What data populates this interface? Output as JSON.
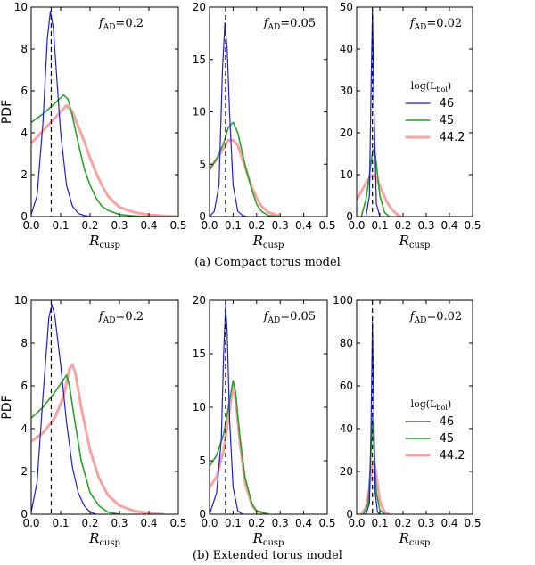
{
  "captions": {
    "a": "(a)  Compact torus model",
    "b": "(b)  Extended torus model"
  },
  "y_axis_label": "PDF",
  "x_axis_label": {
    "main": "R",
    "sub": "cusp"
  },
  "legend": {
    "title_main": "log(L",
    "title_sub": "bol",
    "title_close": ")",
    "entries": [
      {
        "label": "46",
        "color": "#1f1fd6",
        "width": 1.2
      },
      {
        "label": "45",
        "color": "#2ca02c",
        "width": 1.6
      },
      {
        "label": "44.2",
        "color": "#f5a3a3",
        "width": 3.0
      }
    ]
  },
  "x_ticks": [
    "0.0",
    "0.1",
    "0.2",
    "0.3",
    "0.4",
    "0.5"
  ],
  "chart_data": [
    {
      "type": "line",
      "row": "a",
      "panel": 1,
      "annotation": {
        "main": "f",
        "sub": "AD",
        "value": "=0.2"
      },
      "xlim": [
        0,
        0.5
      ],
      "ylim": [
        0,
        10
      ],
      "yticks": [
        0,
        2,
        4,
        6,
        8,
        10
      ],
      "vline_x": 0.068,
      "series": [
        {
          "name": "46",
          "x": [
            0,
            0.02,
            0.04,
            0.055,
            0.065,
            0.075,
            0.09,
            0.1,
            0.12,
            0.14,
            0.16,
            0.18,
            0.2
          ],
          "y": [
            0.1,
            1,
            4.5,
            8.5,
            9.8,
            9,
            6,
            4,
            1.5,
            0.5,
            0.15,
            0.05,
            0
          ]
        },
        {
          "name": "45",
          "x": [
            0,
            0.04,
            0.08,
            0.11,
            0.125,
            0.14,
            0.16,
            0.18,
            0.2,
            0.22,
            0.24,
            0.26,
            0.3,
            0.35,
            0.4
          ],
          "y": [
            4.5,
            4.9,
            5.4,
            5.8,
            5.6,
            4.8,
            3.5,
            2.3,
            1.5,
            0.9,
            0.5,
            0.3,
            0.1,
            0.03,
            0
          ]
        },
        {
          "name": "44.2",
          "x": [
            0,
            0.04,
            0.08,
            0.12,
            0.14,
            0.16,
            0.18,
            0.2,
            0.22,
            0.24,
            0.26,
            0.28,
            0.3,
            0.35,
            0.4,
            0.45,
            0.5
          ],
          "y": [
            3.5,
            4.1,
            4.7,
            5.3,
            5,
            4.3,
            3.6,
            2.8,
            2.1,
            1.5,
            1,
            0.7,
            0.45,
            0.2,
            0.08,
            0.03,
            0
          ]
        }
      ]
    },
    {
      "type": "line",
      "row": "a",
      "panel": 2,
      "annotation": {
        "main": "f",
        "sub": "AD",
        "value": "=0.05"
      },
      "xlim": [
        0,
        0.5
      ],
      "ylim": [
        0,
        20
      ],
      "yticks": [
        0,
        5,
        10,
        15,
        20
      ],
      "vline_x": 0.068,
      "series": [
        {
          "name": "46",
          "x": [
            0,
            0.02,
            0.04,
            0.055,
            0.065,
            0.075,
            0.085,
            0.1,
            0.12,
            0.14,
            0.16
          ],
          "y": [
            0,
            0.5,
            3,
            14,
            18.5,
            16,
            10,
            3,
            0.5,
            0.1,
            0
          ]
        },
        {
          "name": "45",
          "x": [
            0,
            0.03,
            0.06,
            0.08,
            0.1,
            0.12,
            0.15,
            0.18,
            0.2,
            0.22,
            0.25,
            0.3
          ],
          "y": [
            4.5,
            5.5,
            7,
            8.5,
            9,
            8,
            5,
            2.5,
            1.2,
            0.5,
            0.1,
            0
          ]
        },
        {
          "name": "44.2",
          "x": [
            0,
            0.03,
            0.06,
            0.08,
            0.1,
            0.12,
            0.15,
            0.18,
            0.2,
            0.22,
            0.25,
            0.3
          ],
          "y": [
            4.5,
            5.5,
            6.5,
            7.3,
            7.3,
            6.8,
            4.8,
            2.8,
            1.8,
            1,
            0.4,
            0.05
          ]
        }
      ]
    },
    {
      "type": "line",
      "row": "a",
      "panel": 3,
      "annotation": {
        "main": "f",
        "sub": "AD",
        "value": "=0.02"
      },
      "xlim": [
        0,
        0.5
      ],
      "ylim": [
        0,
        50
      ],
      "yticks": [
        0,
        10,
        20,
        30,
        40,
        50
      ],
      "vline_x": 0.068,
      "series": [
        {
          "name": "46",
          "x": [
            0.04,
            0.055,
            0.062,
            0.068,
            0.075,
            0.085,
            0.1
          ],
          "y": [
            0,
            5,
            30,
            49,
            25,
            3,
            0
          ]
        },
        {
          "name": "45",
          "x": [
            0.02,
            0.04,
            0.055,
            0.07,
            0.08,
            0.09,
            0.1,
            0.12,
            0.14
          ],
          "y": [
            0,
            4,
            10,
            16,
            15,
            10,
            5,
            1,
            0
          ]
        },
        {
          "name": "44.2",
          "x": [
            0,
            0.02,
            0.04,
            0.06,
            0.075,
            0.09,
            0.11,
            0.13,
            0.15,
            0.17,
            0.19
          ],
          "y": [
            4,
            6,
            8,
            9.5,
            10,
            8.5,
            6,
            3.5,
            1.8,
            0.7,
            0
          ]
        }
      ]
    },
    {
      "type": "line",
      "row": "b",
      "panel": 1,
      "annotation": {
        "main": "f",
        "sub": "AD",
        "value": "=0.2"
      },
      "xlim": [
        0,
        0.5
      ],
      "ylim": [
        0,
        10
      ],
      "yticks": [
        0,
        2,
        4,
        6,
        8,
        10
      ],
      "vline_x": 0.068,
      "series": [
        {
          "name": "46",
          "x": [
            0,
            0.02,
            0.04,
            0.06,
            0.07,
            0.08,
            0.1,
            0.12,
            0.14,
            0.16,
            0.18,
            0.2,
            0.22
          ],
          "y": [
            0.1,
            1.5,
            5.5,
            9.2,
            9.8,
            9.3,
            7,
            4.3,
            2.2,
            1,
            0.4,
            0.1,
            0
          ]
        },
        {
          "name": "45",
          "x": [
            0,
            0.04,
            0.08,
            0.11,
            0.12,
            0.13,
            0.15,
            0.17,
            0.2,
            0.23,
            0.26,
            0.3
          ],
          "y": [
            4.5,
            5,
            5.7,
            6.3,
            6.5,
            6,
            4.2,
            2.5,
            1,
            0.4,
            0.1,
            0
          ]
        },
        {
          "name": "44.2",
          "x": [
            0,
            0.04,
            0.08,
            0.11,
            0.13,
            0.14,
            0.15,
            0.17,
            0.2,
            0.23,
            0.26,
            0.3,
            0.35,
            0.4,
            0.45
          ],
          "y": [
            3.4,
            3.8,
            4.5,
            5.5,
            6.8,
            7,
            6.6,
            5,
            3,
            1.7,
            0.9,
            0.4,
            0.15,
            0.05,
            0
          ]
        }
      ]
    },
    {
      "type": "line",
      "row": "b",
      "panel": 2,
      "annotation": {
        "main": "f",
        "sub": "AD",
        "value": "=0.05"
      },
      "xlim": [
        0,
        0.5
      ],
      "ylim": [
        0,
        20
      ],
      "yticks": [
        0,
        5,
        10,
        15,
        20
      ],
      "vline_x": 0.068,
      "series": [
        {
          "name": "46",
          "x": [
            0,
            0.03,
            0.05,
            0.06,
            0.068,
            0.075,
            0.085,
            0.1,
            0.12,
            0.14
          ],
          "y": [
            0,
            2,
            7,
            15,
            19.5,
            17,
            9,
            2.5,
            0.3,
            0
          ]
        },
        {
          "name": "45",
          "x": [
            0,
            0.03,
            0.06,
            0.08,
            0.1,
            0.11,
            0.13,
            0.15,
            0.18,
            0.2,
            0.25
          ],
          "y": [
            4.5,
            5.5,
            7.5,
            10,
            12.5,
            11.5,
            7,
            3.5,
            1,
            0.3,
            0
          ]
        },
        {
          "name": "44.2",
          "x": [
            0,
            0.03,
            0.06,
            0.08,
            0.1,
            0.11,
            0.13,
            0.15,
            0.18,
            0.2,
            0.25
          ],
          "y": [
            2.5,
            3.5,
            6,
            9,
            12,
            11,
            6.5,
            3,
            0.8,
            0.3,
            0
          ]
        }
      ]
    },
    {
      "type": "line",
      "row": "b",
      "panel": 3,
      "annotation": {
        "main": "f",
        "sub": "AD",
        "value": "=0.02"
      },
      "xlim": [
        0,
        0.5
      ],
      "ylim": [
        0,
        100
      ],
      "yticks": [
        0,
        20,
        40,
        60,
        80,
        100
      ],
      "vline_x": 0.068,
      "series": [
        {
          "name": "46",
          "x": [
            0.04,
            0.055,
            0.062,
            0.068,
            0.072,
            0.08,
            0.09,
            0.1
          ],
          "y": [
            0,
            5,
            40,
            90,
            60,
            10,
            1,
            0
          ]
        },
        {
          "name": "45",
          "x": [
            0.03,
            0.05,
            0.06,
            0.068,
            0.075,
            0.085,
            0.1,
            0.12
          ],
          "y": [
            0,
            5,
            25,
            45,
            30,
            10,
            2,
            0
          ]
        },
        {
          "name": "44.2",
          "x": [
            0.02,
            0.04,
            0.055,
            0.065,
            0.075,
            0.085,
            0.1,
            0.12,
            0.14
          ],
          "y": [
            0,
            3,
            12,
            22,
            25,
            18,
            6,
            1,
            0
          ]
        }
      ]
    }
  ]
}
